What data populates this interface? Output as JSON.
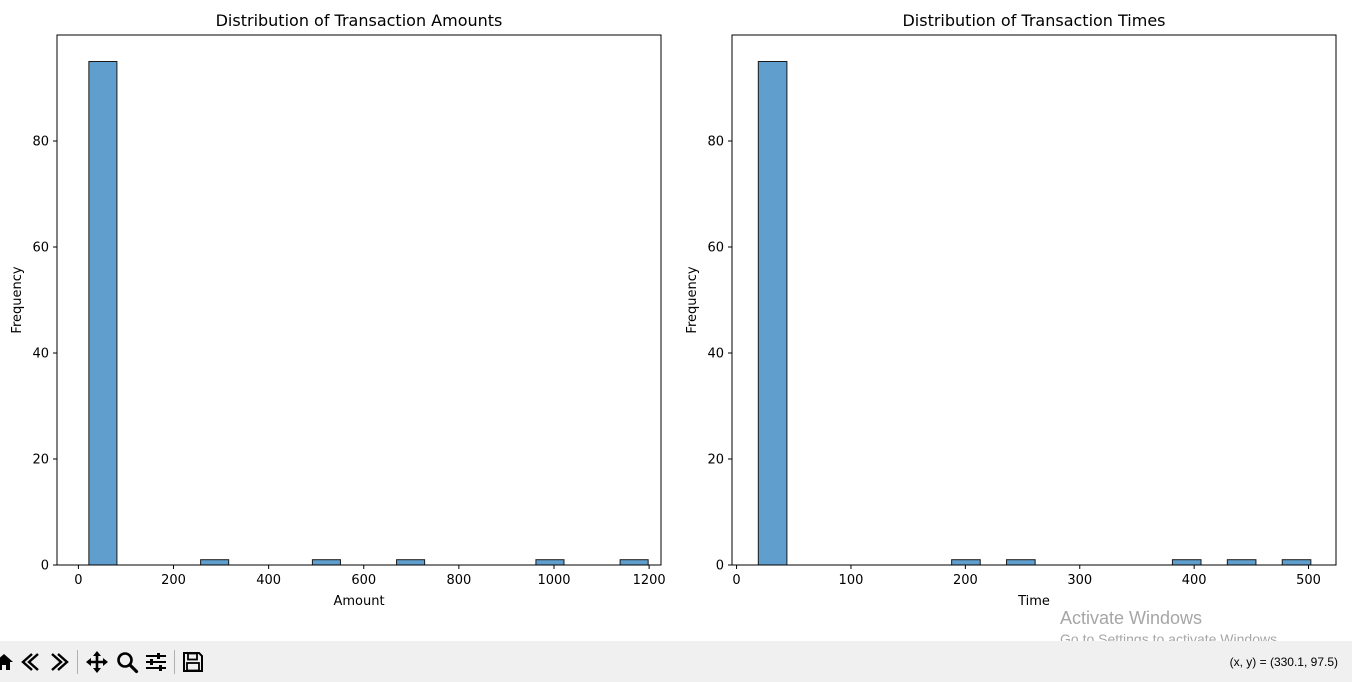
{
  "chart_data": [
    {
      "type": "bar",
      "title": "Distribution of Transaction Amounts",
      "xlabel": "Amount",
      "ylabel": "Frequency",
      "xlim": [
        -45,
        1225
      ],
      "ylim": [
        0,
        100
      ],
      "xticks": [
        0,
        200,
        400,
        600,
        800,
        1000,
        1200
      ],
      "yticks": [
        0,
        20,
        40,
        60,
        80
      ],
      "bars": [
        {
          "x0": 22,
          "x1": 81,
          "value": 95
        },
        {
          "x0": 257,
          "x1": 316,
          "value": 1
        },
        {
          "x0": 492,
          "x1": 551,
          "value": 1
        },
        {
          "x0": 669,
          "x1": 728,
          "value": 1
        },
        {
          "x0": 962,
          "x1": 1021,
          "value": 1
        },
        {
          "x0": 1139,
          "x1": 1198,
          "value": 1
        }
      ],
      "grid": false
    },
    {
      "type": "bar",
      "title": "Distribution of Transaction Times",
      "xlabel": "Time",
      "ylabel": "Frequency",
      "xlim": [
        -4,
        524
      ],
      "ylim": [
        0,
        100
      ],
      "xticks": [
        0,
        100,
        200,
        300,
        400,
        500
      ],
      "yticks": [
        0,
        20,
        40,
        60,
        80
      ],
      "bars": [
        {
          "x0": 19,
          "x1": 44,
          "value": 95
        },
        {
          "x0": 188,
          "x1": 213,
          "value": 1
        },
        {
          "x0": 236,
          "x1": 261,
          "value": 1
        },
        {
          "x0": 381,
          "x1": 406,
          "value": 1
        },
        {
          "x0": 429,
          "x1": 454,
          "value": 1
        },
        {
          "x0": 477,
          "x1": 502,
          "value": 1
        }
      ],
      "grid": false
    }
  ],
  "colors": {
    "bar_fill": "#5f9ecd",
    "bar_edge": "#1a1a1a",
    "toolbar_bg": "#f0f0f0"
  },
  "toolbar": {
    "icons": [
      "home-icon",
      "back-icon",
      "forward-icon",
      "pan-icon",
      "zoom-icon",
      "configure-icon",
      "save-icon"
    ],
    "coords_text": "(x, y) = (330.1, 97.5)"
  },
  "watermark": {
    "title": "Activate Windows",
    "subtitle": "Go to Settings to activate Windows."
  }
}
